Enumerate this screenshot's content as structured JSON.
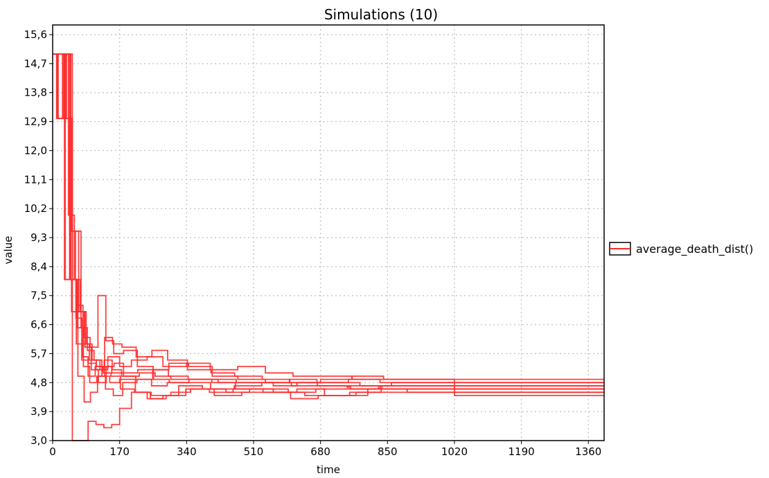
{
  "chart_data": {
    "type": "line",
    "title": "Simulations (10)",
    "xlabel": "time",
    "ylabel": "value",
    "xlim": [
      0,
      1400
    ],
    "ylim": [
      3.0,
      15.9
    ],
    "x_ticks": [
      0,
      170,
      340,
      510,
      680,
      850,
      1020,
      1190,
      1360
    ],
    "y_ticks": [
      3.0,
      3.9,
      4.8,
      5.7,
      6.6,
      7.5,
      8.4,
      9.3,
      10.2,
      11.1,
      12.0,
      12.9,
      13.8,
      14.7,
      15.6
    ],
    "x_tick_labels": [
      "0",
      "170",
      "340",
      "510",
      "680",
      "850",
      "1020",
      "1190",
      "1360"
    ],
    "y_tick_labels": [
      "3,0",
      "3,9",
      "4,8",
      "5,7",
      "6,6",
      "7,5",
      "8,4",
      "9,3",
      "10,2",
      "11,1",
      "12,0",
      "12,9",
      "13,8",
      "14,7",
      "15,6"
    ],
    "grid": true,
    "legend_position": "right",
    "legend": [
      {
        "label": "average_death_dist()",
        "color": "#ff2a2a"
      }
    ],
    "series": [
      {
        "x": [
          0,
          15,
          30,
          45,
          60,
          75,
          90,
          110,
          130,
          150,
          180,
          220,
          260,
          300,
          360,
          420,
          500,
          560,
          620,
          700,
          780,
          860,
          950,
          1020,
          1100,
          1250,
          1400
        ],
        "y": [
          15.0,
          15.0,
          8.0,
          8.0,
          6.0,
          5.6,
          5.4,
          5.2,
          5.3,
          5.1,
          5.0,
          5.1,
          5.0,
          4.9,
          4.9,
          4.8,
          4.8,
          4.7,
          4.8,
          4.8,
          4.7,
          4.8,
          4.8,
          4.7,
          4.7,
          4.7,
          4.7
        ]
      },
      {
        "x": [
          0,
          10,
          25,
          40,
          55,
          70,
          85,
          100,
          120,
          140,
          170,
          200,
          240,
          280,
          340,
          400,
          470,
          540,
          610,
          680,
          760,
          840,
          930,
          1020,
          1100,
          1250,
          1400
        ],
        "y": [
          15.0,
          13.0,
          15.0,
          10.0,
          8.0,
          7.0,
          6.0,
          5.5,
          5.2,
          5.6,
          5.3,
          5.5,
          5.6,
          5.3,
          5.4,
          5.2,
          5.3,
          5.1,
          5.0,
          5.0,
          4.9,
          4.9,
          4.9,
          4.9,
          4.9,
          4.9,
          4.9
        ]
      },
      {
        "x": [
          0,
          20,
          40,
          50,
          60,
          75,
          90,
          110,
          130,
          150,
          170,
          200,
          240,
          280,
          320,
          380,
          440,
          500,
          560,
          640,
          720,
          800,
          900,
          1020,
          1100,
          1250,
          1400
        ],
        "y": [
          15.0,
          15.0,
          15.0,
          3.0,
          3.0,
          3.0,
          3.6,
          3.5,
          3.4,
          3.5,
          4.0,
          4.5,
          4.3,
          4.4,
          4.7,
          4.6,
          4.5,
          4.6,
          4.5,
          4.4,
          4.4,
          4.6,
          4.5,
          4.5,
          4.5,
          4.5,
          4.5
        ]
      },
      {
        "x": [
          0,
          12,
          28,
          44,
          58,
          72,
          88,
          105,
          125,
          145,
          170,
          210,
          250,
          300,
          350,
          410,
          480,
          550,
          620,
          690,
          770,
          850,
          940,
          1020,
          1100,
          1250,
          1400
        ],
        "y": [
          15.0,
          13.0,
          13.0,
          8.0,
          9.5,
          6.5,
          5.8,
          5.5,
          5.0,
          4.8,
          4.9,
          4.5,
          4.4,
          4.5,
          4.6,
          4.4,
          4.5,
          4.5,
          4.6,
          4.4,
          4.5,
          4.5,
          4.5,
          4.4,
          4.4,
          4.4,
          4.4
        ]
      },
      {
        "x": [
          0,
          18,
          35,
          50,
          65,
          80,
          95,
          115,
          135,
          155,
          180,
          215,
          255,
          295,
          345,
          405,
          470,
          540,
          610,
          680,
          760,
          840,
          930,
          1020,
          1100,
          1250,
          1400
        ],
        "y": [
          15.0,
          15.0,
          13.0,
          8.0,
          7.0,
          6.2,
          5.9,
          7.5,
          6.1,
          5.7,
          5.8,
          5.3,
          5.2,
          5.4,
          5.3,
          5.0,
          4.9,
          4.8,
          4.8,
          4.9,
          5.0,
          4.9,
          4.9,
          4.8,
          4.8,
          4.8,
          4.8
        ]
      },
      {
        "x": [
          0,
          14,
          30,
          46,
          62,
          78,
          94,
          112,
          132,
          152,
          176,
          212,
          252,
          292,
          342,
          402,
          462,
          532,
          602,
          672,
          752,
          832,
          922,
          1020,
          1100,
          1250,
          1400
        ],
        "y": [
          15.0,
          13.0,
          15.0,
          8.0,
          6.5,
          5.3,
          4.8,
          5.0,
          6.2,
          6.0,
          5.9,
          5.6,
          5.8,
          5.5,
          5.2,
          5.1,
          5.0,
          4.9,
          4.8,
          4.7,
          4.6,
          4.7,
          4.7,
          4.6,
          4.6,
          4.6,
          4.6
        ]
      },
      {
        "x": [
          0,
          16,
          32,
          48,
          64,
          80,
          96,
          114,
          134,
          154,
          178,
          214,
          254,
          294,
          344,
          404,
          464,
          534,
          604,
          674,
          754,
          834,
          924,
          1020,
          1100,
          1250,
          1400
        ],
        "y": [
          15.0,
          15.0,
          8.0,
          7.0,
          5.0,
          4.2,
          4.5,
          5.0,
          4.6,
          4.4,
          4.8,
          4.9,
          5.2,
          5.0,
          4.9,
          4.8,
          4.6,
          4.5,
          4.3,
          4.4,
          4.5,
          4.6,
          4.6,
          4.6,
          4.6,
          4.6,
          4.6
        ]
      },
      {
        "x": [
          0,
          13,
          29,
          45,
          61,
          77,
          93,
          111,
          131,
          151,
          175,
          211,
          251,
          291,
          341,
          401,
          461,
          531,
          601,
          671,
          751,
          831,
          921,
          1020,
          1100,
          1250,
          1400
        ],
        "y": [
          15.0,
          15.0,
          15.0,
          8.0,
          7.2,
          6.0,
          5.5,
          5.3,
          5.5,
          5.2,
          5.0,
          4.9,
          4.7,
          4.8,
          4.8,
          4.6,
          4.7,
          4.8,
          4.9,
          4.8,
          4.9,
          4.8,
          4.8,
          4.8,
          4.8,
          4.8,
          4.8
        ]
      },
      {
        "x": [
          0,
          17,
          33,
          49,
          66,
          82,
          98,
          116,
          136,
          156,
          180,
          216,
          256,
          296,
          346,
          406,
          466,
          536,
          606,
          676,
          756,
          836,
          926,
          1020,
          1100,
          1250,
          1400
        ],
        "y": [
          15.0,
          15.0,
          13.0,
          9.5,
          7.0,
          5.9,
          5.2,
          4.8,
          5.3,
          5.4,
          5.1,
          5.2,
          4.9,
          4.8,
          4.9,
          4.9,
          4.8,
          4.8,
          4.7,
          4.7,
          4.6,
          4.7,
          4.7,
          4.7,
          4.7,
          4.7,
          4.7
        ]
      },
      {
        "x": [
          0,
          11,
          27,
          43,
          59,
          74,
          90,
          108,
          128,
          148,
          172,
          208,
          248,
          288,
          338,
          398,
          458,
          528,
          598,
          668,
          748,
          828,
          918,
          1020,
          1100,
          1250,
          1400
        ],
        "y": [
          15.0,
          13.0,
          15.0,
          8.0,
          6.8,
          5.5,
          5.0,
          5.3,
          5.1,
          5.0,
          4.6,
          4.5,
          4.3,
          4.4,
          4.6,
          4.5,
          4.6,
          4.6,
          4.5,
          4.6,
          4.7,
          4.6,
          4.6,
          4.5,
          4.5,
          4.5,
          4.5
        ]
      }
    ]
  },
  "colors": {
    "series": "#ff2a2a",
    "grid": "#c8c8c8",
    "frame": "#000000"
  }
}
